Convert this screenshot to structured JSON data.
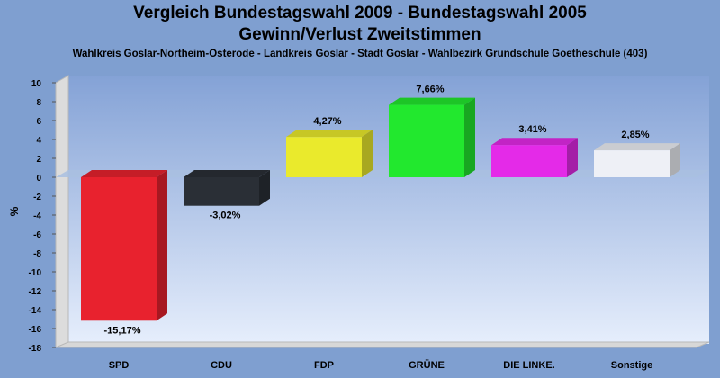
{
  "title": "Vergleich Bundestagswahl 2009 - Bundestagswahl 2005",
  "subtitle": "Gewinn/Verlust Zweitstimmen",
  "subsubtitle": "Wahlkreis Goslar-Northeim-Osterode - Landkreis Goslar - Stadt Goslar - Wahlbezirk Grundschule Goetheschule (403)",
  "chart_data": {
    "type": "bar",
    "categories": [
      "SPD",
      "CDU",
      "FDP",
      "GRÜNE",
      "DIE LINKE.",
      "Sonstige"
    ],
    "values": [
      -15.17,
      -3.02,
      4.27,
      7.66,
      3.41,
      2.85
    ],
    "value_labels": [
      "-15,17%",
      "-3,02%",
      "4,27%",
      "7,66%",
      "3,41%",
      "2,85%"
    ],
    "colors": [
      "#e8222e",
      "#2a2f36",
      "#eaea2c",
      "#22e82e",
      "#e42ae8",
      "#eef0f6"
    ],
    "ylabel": "%",
    "ylim": [
      -18,
      10
    ],
    "yticks": [
      10,
      8,
      6,
      4,
      2,
      0,
      -2,
      -4,
      -6,
      -8,
      -10,
      -12,
      -14,
      -16,
      -18
    ],
    "grid": false
  }
}
